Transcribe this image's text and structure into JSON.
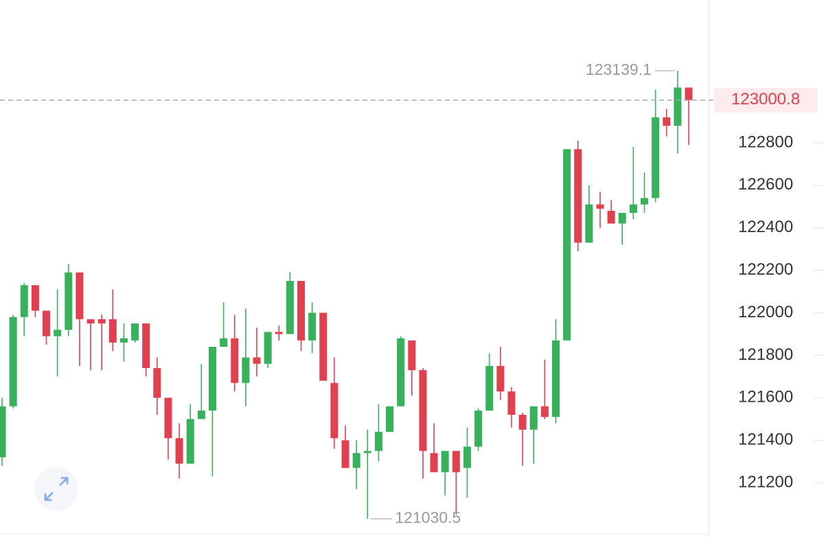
{
  "chart_data": {
    "type": "candlestick",
    "open": [
      121320,
      121560,
      121980,
      122130,
      122010,
      121890,
      121920,
      122190,
      121970,
      121970,
      121970,
      121860,
      121870,
      121950,
      121740,
      121600,
      121410,
      121290,
      121500,
      121540,
      121840,
      121880,
      121670,
      121790,
      121760,
      121910,
      121900,
      122150,
      121870,
      122000,
      121670,
      121400,
      121270,
      121340,
      121350,
      121440,
      121560,
      121870,
      121730,
      121340,
      121250,
      121350,
      121270,
      121370,
      121540,
      121750,
      121630,
      121520,
      121450,
      121560,
      121510,
      121870,
      122770,
      122330,
      122510,
      122480,
      122420,
      122470,
      122510,
      122540,
      122920,
      122880,
      123060
    ],
    "high": [
      121600,
      121990,
      122140,
      122130,
      122010,
      122110,
      122230,
      122190,
      121970,
      121990,
      122110,
      121950,
      121950,
      121950,
      121790,
      121600,
      121480,
      121570,
      121760,
      121840,
      122050,
      121990,
      122020,
      121930,
      121910,
      121940,
      122190,
      122150,
      122050,
      122000,
      121790,
      121470,
      121400,
      121450,
      121570,
      121560,
      121890,
      121870,
      121740,
      121480,
      121350,
      121350,
      121460,
      121550,
      121810,
      121840,
      121650,
      121530,
      121560,
      121780,
      121970,
      122770,
      122810,
      122600,
      122570,
      122530,
      122470,
      122780,
      122660,
      123050,
      122960,
      123139.1,
      123060
    ],
    "low": [
      121280,
      121550,
      121890,
      121980,
      121850,
      121700,
      121890,
      121750,
      121730,
      121730,
      121820,
      121770,
      121860,
      121700,
      121520,
      121310,
      121220,
      121290,
      121500,
      121230,
      121840,
      121630,
      121560,
      121700,
      121740,
      121870,
      121900,
      121820,
      121810,
      121680,
      121360,
      121270,
      121170,
      121030.5,
      121300,
      121440,
      121560,
      121610,
      121220,
      121250,
      121140,
      121050,
      121130,
      121350,
      121540,
      121590,
      121460,
      121280,
      121290,
      121500,
      121480,
      121870,
      122290,
      122330,
      122400,
      122420,
      122320,
      122440,
      122470,
      122520,
      122830,
      122750,
      122790
    ],
    "close": [
      121560,
      121980,
      122130,
      122010,
      121890,
      121920,
      122190,
      121970,
      121950,
      121950,
      121860,
      121880,
      121950,
      121740,
      121600,
      121410,
      121290,
      121500,
      121540,
      121840,
      121880,
      121670,
      121790,
      121760,
      121910,
      121900,
      122150,
      121870,
      122000,
      121680,
      121410,
      121270,
      121340,
      121350,
      121440,
      121560,
      121880,
      121730,
      121350,
      121250,
      121350,
      121250,
      121370,
      121540,
      121750,
      121630,
      121520,
      121450,
      121560,
      121510,
      121870,
      122770,
      122330,
      122510,
      122490,
      122420,
      122470,
      122510,
      122540,
      122920,
      122880,
      123060,
      123000.8
    ],
    "up_color": "#35b25a",
    "down_color": "#e2404f",
    "ylim": [
      120945,
      123472
    ],
    "yticks": [
      121200,
      121400,
      121600,
      121800,
      122000,
      122200,
      122400,
      122600,
      122800
    ]
  }
}
